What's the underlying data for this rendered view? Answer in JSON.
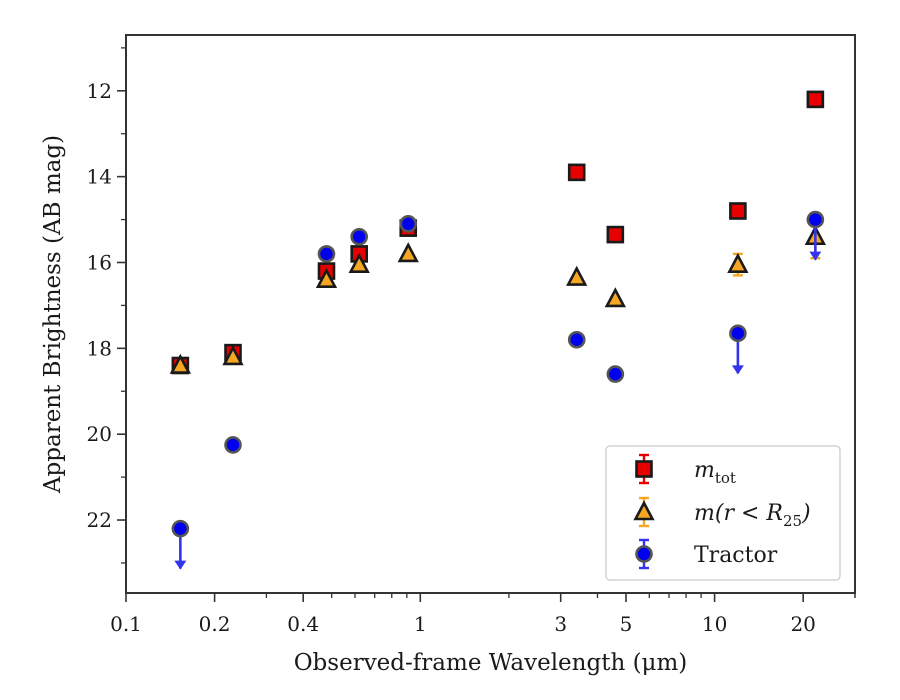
{
  "chart_data": {
    "type": "scatter",
    "title": "",
    "xlabel": "Observed-frame Wavelength (μm)",
    "ylabel": "Apparent Brightness (AB mag)",
    "x_scale": "log",
    "y_inverted": true,
    "xlim": [
      0.1,
      30
    ],
    "ylim": [
      23.7,
      10.7
    ],
    "x_ticks": [
      {
        "value": 0.1,
        "label": "0.1"
      },
      {
        "value": 0.2,
        "label": "0.2"
      },
      {
        "value": 0.4,
        "label": "0.4"
      },
      {
        "value": 1,
        "label": "1"
      },
      {
        "value": 3,
        "label": "3"
      },
      {
        "value": 5,
        "label": "5"
      },
      {
        "value": 10,
        "label": "10"
      },
      {
        "value": 20,
        "label": "20"
      }
    ],
    "y_ticks": [
      {
        "value": 12,
        "label": "12"
      },
      {
        "value": 14,
        "label": "14"
      },
      {
        "value": 16,
        "label": "16"
      },
      {
        "value": 18,
        "label": "18"
      },
      {
        "value": 20,
        "label": "20"
      },
      {
        "value": 22,
        "label": "22"
      }
    ],
    "grid": false,
    "legend_position": "lower-right",
    "series": [
      {
        "name": "m_tot",
        "legend": {
          "base": "m",
          "sub": "tot"
        },
        "marker": "square",
        "color": "#e60000",
        "edge_color": "#1a1a1a",
        "error_color": "#e60000",
        "points": [
          {
            "x": 0.153,
            "y": 18.4
          },
          {
            "x": 0.231,
            "y": 18.1
          },
          {
            "x": 0.48,
            "y": 16.2
          },
          {
            "x": 0.62,
            "y": 15.8
          },
          {
            "x": 0.91,
            "y": 15.2
          },
          {
            "x": 3.4,
            "y": 13.9
          },
          {
            "x": 4.6,
            "y": 15.35
          },
          {
            "x": 12.0,
            "y": 14.8
          },
          {
            "x": 22.0,
            "y": 12.2
          }
        ]
      },
      {
        "name": "m(r < R25)",
        "legend": {
          "base": "m(r < R",
          "sub": "25",
          "tail": ")"
        },
        "marker": "triangle",
        "color": "#f5a623",
        "edge_color": "#1a1a1a",
        "error_color": "#f5a623",
        "points": [
          {
            "x": 0.153,
            "y": 18.4
          },
          {
            "x": 0.231,
            "y": 18.2
          },
          {
            "x": 0.48,
            "y": 16.4
          },
          {
            "x": 0.62,
            "y": 16.05
          },
          {
            "x": 0.91,
            "y": 15.8
          },
          {
            "x": 3.4,
            "y": 16.35
          },
          {
            "x": 4.6,
            "y": 16.85
          },
          {
            "x": 12.0,
            "y": 16.05,
            "err": 0.25
          },
          {
            "x": 22.0,
            "y": 15.4,
            "err": 0.5
          }
        ]
      },
      {
        "name": "Tractor",
        "legend": {
          "base": "Tractor"
        },
        "marker": "circle",
        "color": "#0000ee",
        "edge_color": "#555555",
        "error_color": "#3333ee",
        "points": [
          {
            "x": 0.153,
            "y": 22.2,
            "upper_limit": true
          },
          {
            "x": 0.231,
            "y": 20.25
          },
          {
            "x": 0.48,
            "y": 15.8
          },
          {
            "x": 0.62,
            "y": 15.4
          },
          {
            "x": 0.91,
            "y": 15.1
          },
          {
            "x": 3.4,
            "y": 17.8
          },
          {
            "x": 4.6,
            "y": 18.6
          },
          {
            "x": 12.0,
            "y": 17.65,
            "upper_limit": true
          },
          {
            "x": 22.0,
            "y": 15.0,
            "upper_limit": true
          }
        ]
      }
    ]
  }
}
